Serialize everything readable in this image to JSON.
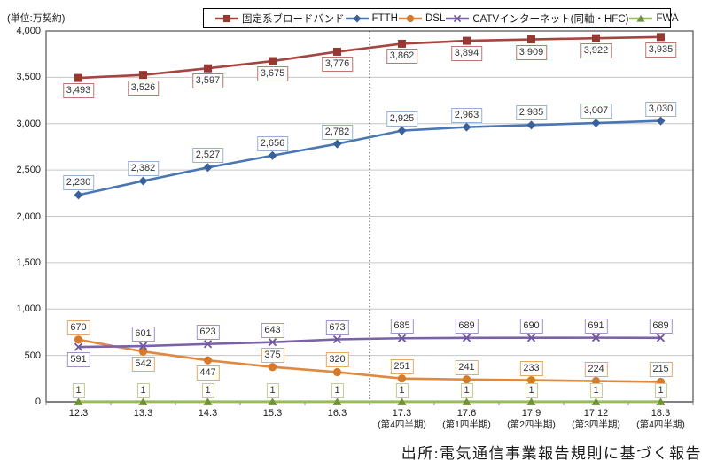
{
  "unit_label": "(単位:万契約)",
  "source": "出所:電気通信事業報告規則に基づく報告",
  "chart_data": {
    "type": "line",
    "title": "",
    "xlabel": "",
    "ylabel": "万契約",
    "ylim": [
      0,
      4000
    ],
    "grid": true,
    "legend_position": "top",
    "divider_after_index": 4,
    "y_ticks": [
      {
        "value": 0,
        "label": "0"
      },
      {
        "value": 500,
        "label": "500"
      },
      {
        "value": 1000,
        "label": "1,000"
      },
      {
        "value": 1500,
        "label": "1,500"
      },
      {
        "value": 2000,
        "label": "2,000"
      },
      {
        "value": 2500,
        "label": "2,500"
      },
      {
        "value": 3000,
        "label": "3,000"
      },
      {
        "value": 3500,
        "label": "3,500"
      },
      {
        "value": 4000,
        "label": "4,000"
      }
    ],
    "categories": [
      {
        "label": "12.3",
        "sub": ""
      },
      {
        "label": "13.3",
        "sub": ""
      },
      {
        "label": "14.3",
        "sub": ""
      },
      {
        "label": "15.3",
        "sub": ""
      },
      {
        "label": "16.3",
        "sub": ""
      },
      {
        "label": "17.3",
        "sub": "(第4四半期)"
      },
      {
        "label": "17.6",
        "sub": "(第1四半期)"
      },
      {
        "label": "17.9",
        "sub": "(第2四半期)"
      },
      {
        "label": "17.12",
        "sub": "(第3四半期)"
      },
      {
        "label": "18.3",
        "sub": "(第4四半期)"
      }
    ],
    "series": [
      {
        "name": "固定系ブロードバンド",
        "marker": "square",
        "color": "#A6453F",
        "marker_color": "#953A33",
        "label_border": "#C0766E",
        "values": [
          3493,
          3526,
          3597,
          3675,
          3776,
          3862,
          3894,
          3909,
          3922,
          3935
        ],
        "labels": [
          "3,493",
          "3,526",
          "3,597",
          "3,675",
          "3,776",
          "3,862",
          "3,894",
          "3,909",
          "3,922",
          "3,935"
        ],
        "label_pos": [
          "below",
          "below",
          "below",
          "below",
          "below",
          "below",
          "below",
          "below",
          "below",
          "below"
        ]
      },
      {
        "name": "FTTH",
        "marker": "diamond",
        "color": "#4A77B4",
        "marker_color": "#39619B",
        "label_border": "#94B2D7",
        "values": [
          2230,
          2382,
          2527,
          2656,
          2782,
          2925,
          2963,
          2985,
          3007,
          3030
        ],
        "labels": [
          "2,230",
          "2,382",
          "2,527",
          "2,656",
          "2,782",
          "2,925",
          "2,963",
          "2,985",
          "3,007",
          "3,030"
        ],
        "label_pos": [
          "above",
          "above",
          "above",
          "above",
          "above",
          "above",
          "above",
          "above",
          "above",
          "above"
        ]
      },
      {
        "name": "DSL",
        "marker": "circle",
        "color": "#E0883E",
        "marker_color": "#D57A2B",
        "label_border": "#E6A963",
        "values": [
          670,
          542,
          447,
          375,
          320,
          251,
          241,
          233,
          224,
          215
        ],
        "labels": [
          "670",
          "542",
          "447",
          "375",
          "320",
          "251",
          "241",
          "233",
          "224",
          "215"
        ],
        "label_pos": [
          "above",
          "below",
          "below",
          "above",
          "above",
          "above",
          "above",
          "above",
          "above",
          "above"
        ]
      },
      {
        "name": "CATVインターネット(同軸・HFC)",
        "marker": "x",
        "color": "#7962A8",
        "marker_color": "#6E569E",
        "label_border": "#A291C5",
        "values": [
          591,
          601,
          623,
          643,
          673,
          685,
          689,
          690,
          691,
          689
        ],
        "labels": [
          "591",
          "601",
          "623",
          "643",
          "673",
          "685",
          "689",
          "690",
          "691",
          "689"
        ],
        "label_pos": [
          "below",
          "above",
          "above",
          "above",
          "above",
          "above",
          "above",
          "above",
          "above",
          "above"
        ]
      },
      {
        "name": "FWA",
        "marker": "triangle",
        "color": "#9ABB59",
        "marker_color": "#71903B",
        "label_border": "#BFD08C",
        "values": [
          1,
          1,
          1,
          1,
          1,
          1,
          1,
          1,
          1,
          1
        ],
        "labels": [
          "1",
          "1",
          "1",
          "1",
          "1",
          "1",
          "1",
          "1",
          "1",
          "1"
        ],
        "label_pos": [
          "above",
          "above",
          "above",
          "above",
          "above",
          "above",
          "above",
          "above",
          "above",
          "above"
        ]
      }
    ]
  }
}
